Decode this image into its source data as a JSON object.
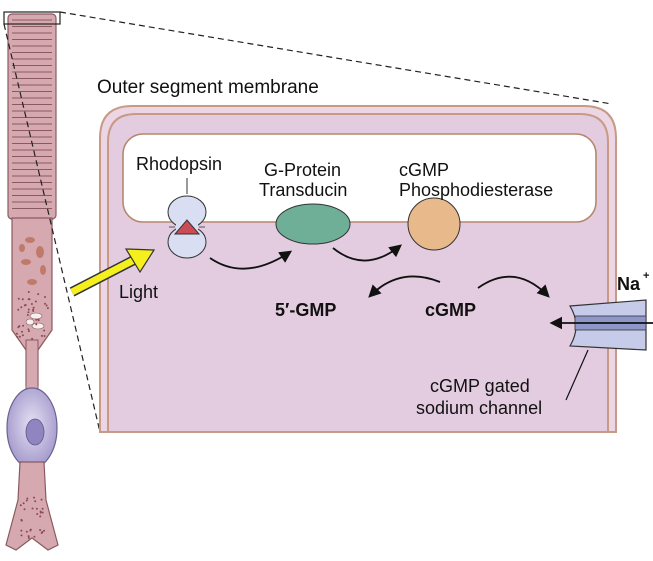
{
  "labels": {
    "outer_segment_membrane": "Outer segment membrane",
    "rhodopsin": "Rhodopsin",
    "g_protein_line1": "G-Protein",
    "g_protein_line2": "Transducin",
    "cgmp_pde_line1": "cGMP",
    "cgmp_pde_line2": "Phosphodiesterase",
    "light": "Light",
    "gmp_5": "5′-GMP",
    "cgmp": "cGMP",
    "na": "Na",
    "na_superscript": "+",
    "channel_line1": "cGMP gated",
    "channel_line2": "sodium channel"
  },
  "colors": {
    "cell_fill": "#e3cce0",
    "cell_border": "#c79a84",
    "rod_fill": "#d6a9b0",
    "rhodopsin_fill": "#d9def2",
    "rhodopsin_triangle": "#cc4b55",
    "transducin_fill": "#6fae97",
    "pde_fill": "#e8b98a",
    "light_arrow": "#f5ef1e",
    "channel_fill": "#c7cbea",
    "nucleus_fill": "#8f86c0"
  }
}
